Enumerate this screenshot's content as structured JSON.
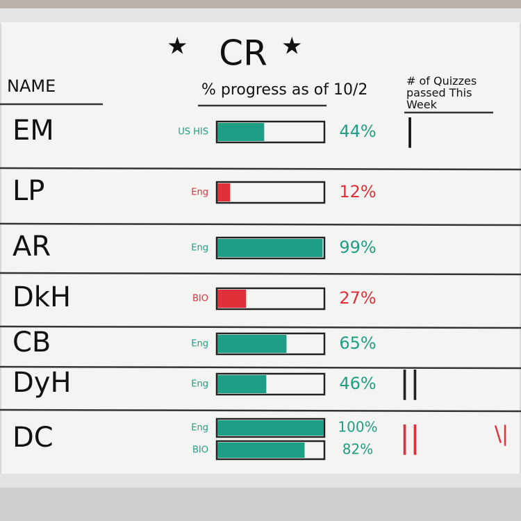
{
  "title": "CR",
  "headers": {
    "name": "NAME",
    "progress": "% progress as of 10/2",
    "quizzes": "# of Quizzes passed This Week"
  },
  "rows": [
    {
      "name": "EM",
      "subjects": [
        {
          "subject": "US HIS",
          "value": 44,
          "label": "44%",
          "color": "#1f9e86"
        }
      ],
      "quizzes": "|"
    },
    {
      "name": "LP",
      "subjects": [
        {
          "subject": "Eng",
          "value": 12,
          "label": "12%",
          "color": "#e0303a"
        }
      ]
    },
    {
      "name": "AR",
      "subjects": [
        {
          "subject": "Eng",
          "value": 99,
          "label": "99%",
          "color": "#1f9e86"
        }
      ]
    },
    {
      "name": "DkH",
      "subjects": [
        {
          "subject": "BIO",
          "value": 27,
          "label": "27%",
          "color": "#e0303a"
        }
      ]
    },
    {
      "name": "CB",
      "subjects": [
        {
          "subject": "Eng",
          "value": 65,
          "label": "65%",
          "color": "#1f9e86"
        }
      ]
    },
    {
      "name": "DyH",
      "subjects": [
        {
          "subject": "Eng",
          "value": 46,
          "label": "46%",
          "color": "#1f9e86"
        }
      ],
      "quizzes": "||",
      "quizzes_color": "#222"
    },
    {
      "name": "DC",
      "subjects": [
        {
          "subject": "Eng",
          "value": 100,
          "label": "100%",
          "color": "#1f9e86"
        },
        {
          "subject": "BIO",
          "value": 82,
          "label": "82%",
          "color": "#1f9e86"
        }
      ],
      "quizzes": "||",
      "quizzes_color": "#e0303a",
      "extra": "\\|"
    }
  ]
}
